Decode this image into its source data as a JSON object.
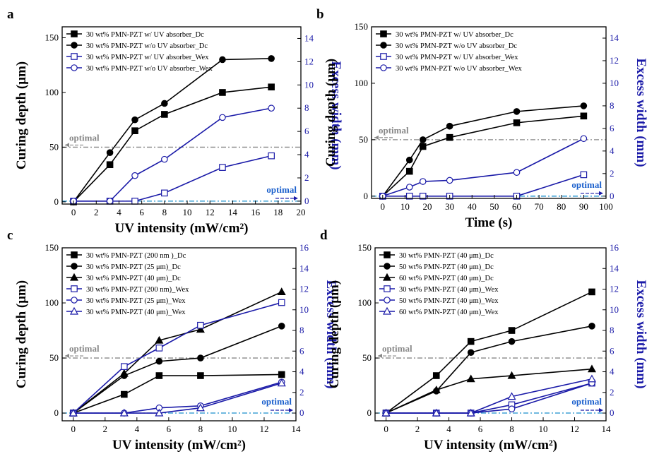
{
  "colors": {
    "black": "#000000",
    "blue": "#1a1aa8",
    "gray_ref": "#888888",
    "blue_ref": "#1a8fcc"
  },
  "chart_data": [
    {
      "type": "line",
      "panel": "a",
      "xlabel": "UV intensity (mW/cm²)",
      "ylabel": "Curing depth (μm)",
      "y2label": "Excess width (mm)",
      "xlim": [
        -1,
        20
      ],
      "ylim": [
        -2,
        160
      ],
      "y2lim": [
        -0.25,
        15
      ],
      "xticks": [
        "0",
        "2",
        "4",
        "6",
        "8",
        "10",
        "12",
        "14",
        "16",
        "18",
        "20"
      ],
      "yticks": [
        "0",
        "50",
        "100",
        "150"
      ],
      "y2ticks": [
        "0",
        "2",
        "4",
        "6",
        "8",
        "10",
        "12",
        "14"
      ],
      "ref_left": {
        "label": "optimal",
        "value": 50
      },
      "ref_right": {
        "label": "optimal",
        "value": 0
      },
      "series": [
        {
          "name": "30 wt% PMN-PZT w/ UV absorber_Dc",
          "axis": "left",
          "color": "#000000",
          "marker": "square-filled",
          "x": [
            0,
            3.2,
            5.4,
            8,
            13.1,
            17.4
          ],
          "y": [
            0,
            34,
            65,
            80,
            100,
            105
          ]
        },
        {
          "name": "30 wt% PMN-PZT w/o UV absorber_Dc",
          "axis": "left",
          "color": "#000000",
          "marker": "circle-filled",
          "x": [
            0,
            3.2,
            5.4,
            8,
            13.1,
            17.4
          ],
          "y": [
            0,
            45,
            75,
            90,
            130,
            131
          ]
        },
        {
          "name": "30 wt% PMN-PZT w/ UV absorber_Wex",
          "axis": "right",
          "color": "#1a1aa8",
          "marker": "square-open",
          "x": [
            0,
            3.2,
            5.4,
            8,
            13.1,
            17.4
          ],
          "y": [
            0,
            0,
            0,
            0.7,
            2.9,
            3.9
          ]
        },
        {
          "name": "30 wt% PMN-PZT w/o UV absorber_Wex",
          "axis": "right",
          "color": "#1a1aa8",
          "marker": "circle-open",
          "x": [
            0,
            3.2,
            5.4,
            8,
            13.1,
            17.4
          ],
          "y": [
            0,
            0,
            2.2,
            3.6,
            7.2,
            8.0
          ]
        }
      ]
    },
    {
      "type": "line",
      "panel": "b",
      "xlabel": "Time (s)",
      "ylabel": "Curing depth (μm)",
      "y2label": "Excess width (mm)",
      "xlim": [
        -5,
        100
      ],
      "ylim": [
        -2,
        150
      ],
      "y2lim": [
        -0.2,
        15
      ],
      "xticks": [
        "0",
        "10",
        "20",
        "30",
        "40",
        "50",
        "60",
        "70",
        "80",
        "90",
        "100"
      ],
      "yticks": [
        "0",
        "50",
        "100",
        "150"
      ],
      "y2ticks": [
        "0",
        "2",
        "4",
        "6",
        "8",
        "10",
        "12",
        "14"
      ],
      "ref_left": {
        "label": "optimal",
        "value": 50
      },
      "ref_right": {
        "label": "optimal",
        "value": 0
      },
      "series": [
        {
          "name": "30 wt% PMN-PZT w/ UV absorber_Dc",
          "axis": "left",
          "color": "#000000",
          "marker": "square-filled",
          "x": [
            0,
            12,
            18,
            30,
            60,
            90
          ],
          "y": [
            0,
            22,
            44,
            52,
            65,
            71
          ]
        },
        {
          "name": "30 wt% PMN-PZT w/o UV absorber_Dc",
          "axis": "left",
          "color": "#000000",
          "marker": "circle-filled",
          "x": [
            0,
            12,
            18,
            30,
            60,
            90
          ],
          "y": [
            0,
            32,
            50,
            62,
            75,
            80
          ]
        },
        {
          "name": "30 wt% PMN-PZT w/ UV absorber_Wex",
          "axis": "right",
          "color": "#1a1aa8",
          "marker": "square-open",
          "x": [
            0,
            12,
            18,
            30,
            60,
            90
          ],
          "y": [
            0,
            0,
            0,
            0,
            0,
            1.9
          ]
        },
        {
          "name": "30 wt% PMN-PZT w/o UV absorber_Wex",
          "axis": "right",
          "color": "#1a1aa8",
          "marker": "circle-open",
          "x": [
            0,
            12,
            18,
            30,
            60,
            90
          ],
          "y": [
            0,
            0.8,
            1.3,
            1.4,
            2.1,
            5.1
          ]
        }
      ]
    },
    {
      "type": "line",
      "panel": "c",
      "xlabel": "UV intensity (mW/cm²)",
      "ylabel": "Curing depth (μm)",
      "y2label": "Excess width (mm)",
      "xlim": [
        -0.7,
        14
      ],
      "ylim": [
        -7,
        150
      ],
      "y2lim": [
        -0.75,
        16
      ],
      "xticks": [
        "0",
        "2",
        "4",
        "6",
        "8",
        "10",
        "12",
        "14"
      ],
      "yticks": [
        "0",
        "50",
        "100",
        "150"
      ],
      "y2ticks": [
        "0",
        "2",
        "4",
        "6",
        "8",
        "10",
        "12",
        "14",
        "16"
      ],
      "ref_left": {
        "label": "optimal",
        "value": 50
      },
      "ref_right": {
        "label": "optimal",
        "value": 0
      },
      "series": [
        {
          "name": "30 wt% PMN-PZT (200 nm )_Dc",
          "axis": "left",
          "color": "#000000",
          "marker": "square-filled",
          "x": [
            0,
            3.2,
            5.4,
            8,
            13.1
          ],
          "y": [
            0,
            17,
            34,
            34,
            35
          ]
        },
        {
          "name": "30 wt% PMN-PZT (25 μm)_Dc",
          "axis": "left",
          "color": "#000000",
          "marker": "circle-filled",
          "x": [
            0,
            3.2,
            5.4,
            8,
            13.1
          ],
          "y": [
            0,
            34,
            47,
            50,
            79
          ]
        },
        {
          "name": "30 wt% PMN-PZT (40 μm)_Dc",
          "axis": "left",
          "color": "#000000",
          "marker": "triangle-filled",
          "x": [
            0,
            3.2,
            5.4,
            8,
            13.1
          ],
          "y": [
            0,
            36,
            66,
            76,
            110
          ]
        },
        {
          "name": "30 wt% PMN-PZT (200 nm)_Wex",
          "axis": "right",
          "color": "#1a1aa8",
          "marker": "square-open",
          "x": [
            0,
            3.2,
            5.4,
            8,
            13.1
          ],
          "y": [
            0,
            4.5,
            6.3,
            8.5,
            10.7
          ]
        },
        {
          "name": "30 wt% PMN-PZT (25 μm)_Wex",
          "axis": "right",
          "color": "#1a1aa8",
          "marker": "circle-open",
          "x": [
            0,
            3.2,
            5.4,
            8,
            13.1
          ],
          "y": [
            0,
            0,
            0.5,
            0.7,
            3.0
          ]
        },
        {
          "name": "30 wt% PMN-PZT (40 μm)_Wex",
          "axis": "right",
          "color": "#1a1aa8",
          "marker": "triangle-open",
          "x": [
            0,
            3.2,
            5.4,
            8,
            13.1
          ],
          "y": [
            0,
            0,
            0,
            0.5,
            2.9
          ]
        }
      ]
    },
    {
      "type": "line",
      "panel": "d",
      "xlabel": "UV intensity (mW/cm²)",
      "ylabel": "Curing depth (μm)",
      "y2label": "Excess width (mm)",
      "xlim": [
        -0.7,
        14
      ],
      "ylim": [
        -7,
        150
      ],
      "y2lim": [
        -0.75,
        16
      ],
      "xticks": [
        "0",
        "2",
        "4",
        "6",
        "8",
        "10",
        "12",
        "14"
      ],
      "yticks": [
        "0",
        "50",
        "100",
        "150"
      ],
      "y2ticks": [
        "0",
        "2",
        "4",
        "6",
        "8",
        "10",
        "12",
        "14",
        "16"
      ],
      "ref_left": {
        "label": "optimal",
        "value": 50
      },
      "ref_right": {
        "label": "optimal",
        "value": 0
      },
      "series": [
        {
          "name": "30 wt% PMN-PZT (40 μm)_Dc",
          "axis": "left",
          "color": "#000000",
          "marker": "square-filled",
          "x": [
            0,
            3.2,
            5.4,
            8,
            13.1
          ],
          "y": [
            0,
            34,
            65,
            75,
            110
          ]
        },
        {
          "name": "50 wt% PMN-PZT (40 μm)_Dc",
          "axis": "left",
          "color": "#000000",
          "marker": "circle-filled",
          "x": [
            0,
            3.2,
            5.4,
            8,
            13.1
          ],
          "y": [
            0,
            20,
            55,
            65,
            79
          ]
        },
        {
          "name": "60 wt% PMN-PZT (40 μm)_Dc",
          "axis": "left",
          "color": "#000000",
          "marker": "triangle-filled",
          "x": [
            0,
            3.2,
            5.4,
            8,
            13.1
          ],
          "y": [
            0,
            21,
            31,
            34,
            40
          ]
        },
        {
          "name": "30 wt% PMN-PZT (40 μm)_Wex",
          "axis": "right",
          "color": "#1a1aa8",
          "marker": "square-open",
          "x": [
            0,
            3.2,
            5.4,
            8,
            13.1
          ],
          "y": [
            0,
            0,
            0,
            0.8,
            2.9
          ]
        },
        {
          "name": "50 wt% PMN-PZT (40 μm)_Wex",
          "axis": "right",
          "color": "#1a1aa8",
          "marker": "circle-open",
          "x": [
            0,
            3.2,
            5.4,
            8,
            13.1
          ],
          "y": [
            0,
            0,
            0,
            0.4,
            2.9
          ]
        },
        {
          "name": "60 wt% PMN-PZT (40 μm)_Wex",
          "axis": "right",
          "color": "#1a1aa8",
          "marker": "triangle-open",
          "x": [
            0,
            3.2,
            5.4,
            8,
            13.1
          ],
          "y": [
            0,
            0,
            0,
            1.6,
            3.3
          ]
        }
      ]
    }
  ]
}
